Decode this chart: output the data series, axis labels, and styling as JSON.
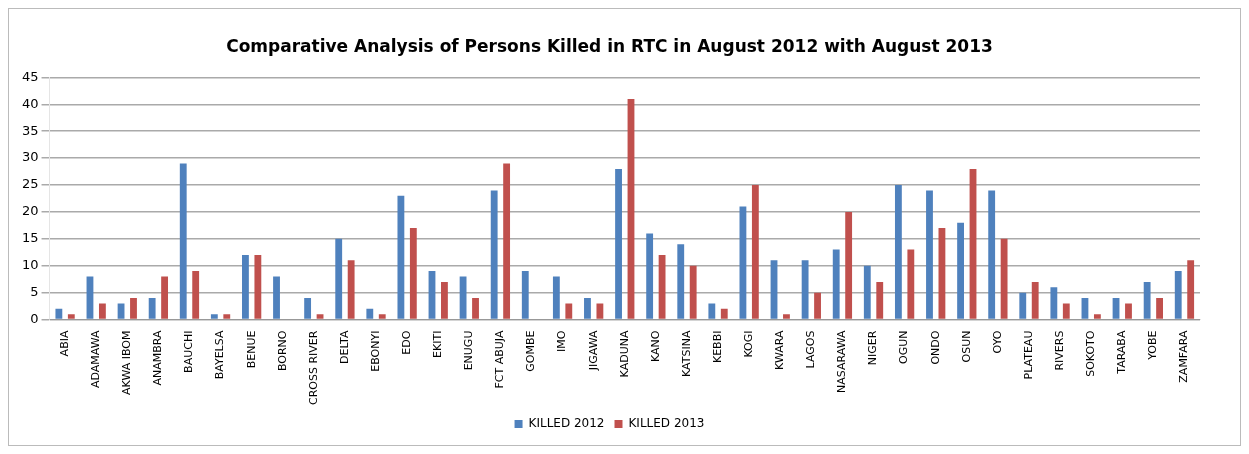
{
  "chart_data": {
    "type": "bar",
    "title": "Comparative Analysis of Persons Killed in RTC in August 2012 with August 2013",
    "categories": [
      "ABIA",
      "ADAMAWA",
      "AKWA IBOM",
      "ANAMBRA",
      "BAUCHI",
      "BAYELSA",
      "BENUE",
      "BORNO",
      "CROSS RIVER",
      "DELTA",
      "EBONYI",
      "EDO",
      "EKITI",
      "ENUGU",
      "FCT ABUJA",
      "GOMBE",
      "IMO",
      "JIGAWA",
      "KADUNA",
      "KANO",
      "KATSINA",
      "KEBBI",
      "KOGI",
      "KWARA",
      "LAGOS",
      "NASARAWA",
      "NIGER",
      "OGUN",
      "ONDO",
      "OSUN",
      "OYO",
      "PLATEAU",
      "RIVERS",
      "SOKOTO",
      "TARABA",
      "YOBE",
      "ZAMFARA"
    ],
    "series": [
      {
        "name": "KILLED 2012",
        "color": "#4f81bd",
        "values": [
          2,
          8,
          3,
          4,
          29,
          1,
          12,
          8,
          4,
          15,
          2,
          23,
          9,
          8,
          24,
          9,
          8,
          4,
          28,
          16,
          14,
          3,
          21,
          11,
          11,
          13,
          10,
          25,
          24,
          18,
          24,
          5,
          6,
          4,
          4,
          7,
          9
        ]
      },
      {
        "name": "KILLED 2013",
        "color": "#c0504d",
        "values": [
          1,
          3,
          4,
          8,
          9,
          1,
          12,
          0,
          1,
          11,
          1,
          17,
          7,
          4,
          29,
          0,
          3,
          3,
          41,
          12,
          10,
          2,
          25,
          1,
          5,
          20,
          7,
          13,
          17,
          28,
          15,
          7,
          3,
          1,
          3,
          4,
          11
        ]
      }
    ],
    "ylim": [
      0,
      45
    ],
    "yticks": [
      0,
      5,
      10,
      15,
      20,
      25,
      30,
      35,
      40,
      45
    ],
    "grid": "y",
    "legend": "bottom"
  }
}
